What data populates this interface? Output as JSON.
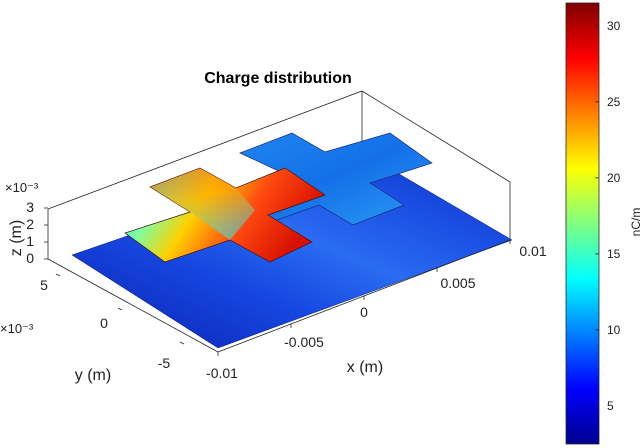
{
  "chart_data": {
    "type": "3d-surface-patch",
    "title": "Charge distribution",
    "xlabel": "x (m)",
    "ylabel": "y (m)",
    "zlabel": "z (m)",
    "x_ticks": [
      "-0.01",
      "-0.005",
      "0",
      "0.005",
      "0.01"
    ],
    "y_ticks": [
      "-5",
      "0",
      "5"
    ],
    "y_exponent": "×10⁻³",
    "z_ticks": [
      "0",
      "1",
      "2",
      "3"
    ],
    "z_exponent": "×10⁻³",
    "xlim": [
      -0.01,
      0.01
    ],
    "ylim": [
      -0.007,
      0.007
    ],
    "zlim": [
      0,
      0.003
    ],
    "colorbar": {
      "label": "nC/m",
      "ticks": [
        "5",
        "10",
        "15",
        "20",
        "25",
        "30"
      ],
      "range": [
        2.5,
        31.5
      ],
      "colormap": "jet"
    },
    "surfaces": [
      {
        "name": "ground plane",
        "z": 0,
        "charge_range": [
          3,
          9
        ]
      },
      {
        "name": "patch 1 (left cross)",
        "z": 0.003,
        "charge_range": [
          12,
          31
        ]
      },
      {
        "name": "patch 2 (right cross)",
        "z": 0.003,
        "charge_range": [
          8,
          11
        ]
      }
    ]
  }
}
